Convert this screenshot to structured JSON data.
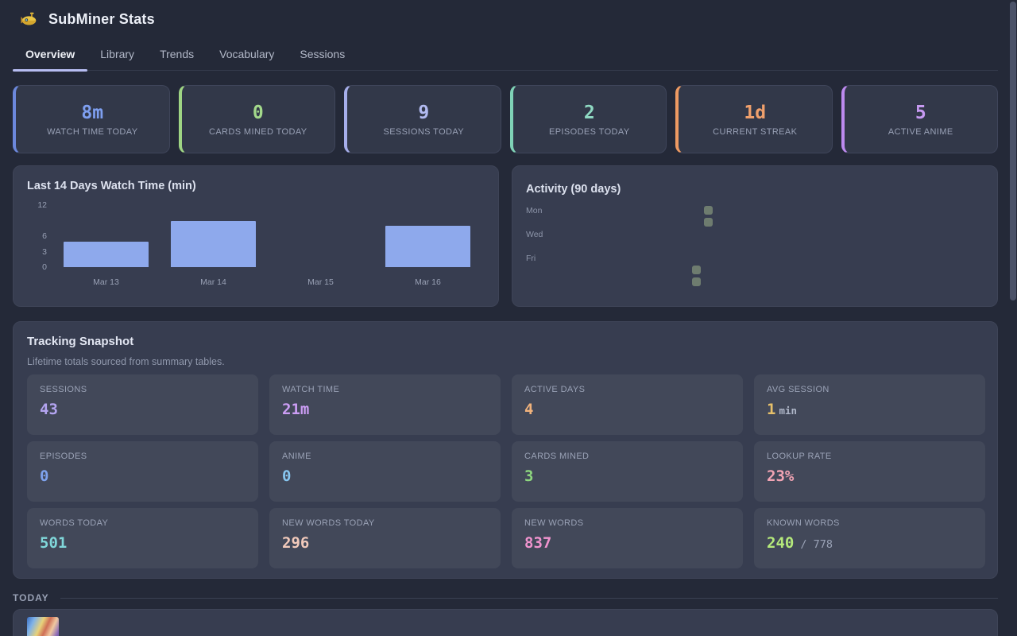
{
  "app": {
    "title": "SubMiner Stats"
  },
  "nav": {
    "tabs": [
      {
        "label": "Overview",
        "active": true
      },
      {
        "label": "Library",
        "active": false
      },
      {
        "label": "Trends",
        "active": false
      },
      {
        "label": "Vocabulary",
        "active": false
      },
      {
        "label": "Sessions",
        "active": false
      }
    ]
  },
  "stat_cards": [
    {
      "value": "8m",
      "label": "WATCH TIME TODAY",
      "color": "#7e9ff0",
      "border": "#6c88dc"
    },
    {
      "value": "0",
      "label": "CARDS MINED TODAY",
      "color": "#a3d98b",
      "border": "#9fd584"
    },
    {
      "value": "9",
      "label": "SESSIONS TODAY",
      "color": "#b2baf0",
      "border": "#a6aeea"
    },
    {
      "value": "2",
      "label": "EPISODES TODAY",
      "color": "#8fd9c2",
      "border": "#7fd2b6"
    },
    {
      "value": "1d",
      "label": "CURRENT STREAK",
      "color": "#f0a06c",
      "border": "#ee9a62"
    },
    {
      "value": "5",
      "label": "ACTIVE ANIME",
      "color": "#c79af2",
      "border": "#bd8aef"
    }
  ],
  "chart_data": [
    {
      "type": "bar",
      "title": "Last 14 Days Watch Time (min)",
      "categories": [
        "Mar 13",
        "Mar 14",
        "Mar 15",
        "Mar 16"
      ],
      "values": [
        5,
        9,
        0,
        8
      ],
      "yticks": [
        12,
        6,
        3,
        0
      ],
      "ylim": [
        0,
        12
      ],
      "bar_color": "#8ea9ec",
      "xlabel": "",
      "ylabel": "",
      "grid": false,
      "legend": "none"
    },
    {
      "type": "heatmap",
      "title": "Activity (90 days)",
      "row_labels": [
        "Mon",
        "Wed",
        "Fri"
      ],
      "rows_order": [
        "Mon",
        "Tue",
        "Wed",
        "Thu",
        "Fri",
        "Sat",
        "Sun"
      ],
      "rows": 7,
      "cols": 13,
      "active_cells": [
        {
          "col": 12,
          "row": 0
        },
        {
          "col": 12,
          "row": 1
        },
        {
          "col": 11,
          "row": 5
        },
        {
          "col": 11,
          "row": 6
        }
      ],
      "cell_color": "#6e7c6f"
    }
  ],
  "tracking": {
    "title": "Tracking Snapshot",
    "subtitle": "Lifetime totals sourced from summary tables.",
    "tiles": [
      {
        "label": "SESSIONS",
        "value": "43",
        "color": "#b3a4f0"
      },
      {
        "label": "WATCH TIME",
        "value": "21m",
        "color": "#cb9df4"
      },
      {
        "label": "ACTIVE DAYS",
        "value": "4",
        "color": "#f0b27c"
      },
      {
        "label": "AVG SESSION",
        "value": "1",
        "suffix": "min",
        "color": "#e6c06a"
      },
      {
        "label": "EPISODES",
        "value": "0",
        "color": "#7ea2ed"
      },
      {
        "label": "ANIME",
        "value": "0",
        "color": "#87c6f0"
      },
      {
        "label": "CARDS MINED",
        "value": "3",
        "color": "#8ed77f"
      },
      {
        "label": "LOOKUP RATE",
        "value": "23%",
        "color": "#f2a4b4"
      },
      {
        "label": "WORDS TODAY",
        "value": "501",
        "color": "#80d7da"
      },
      {
        "label": "NEW WORDS TODAY",
        "value": "296",
        "color": "#f2cabb"
      },
      {
        "label": "NEW WORDS",
        "value": "837",
        "color": "#f194cf"
      },
      {
        "label": "KNOWN WORDS",
        "value": "240",
        "suffix2": "/ 778",
        "color": "#b4e87b"
      }
    ]
  },
  "today": {
    "label": "TODAY"
  }
}
